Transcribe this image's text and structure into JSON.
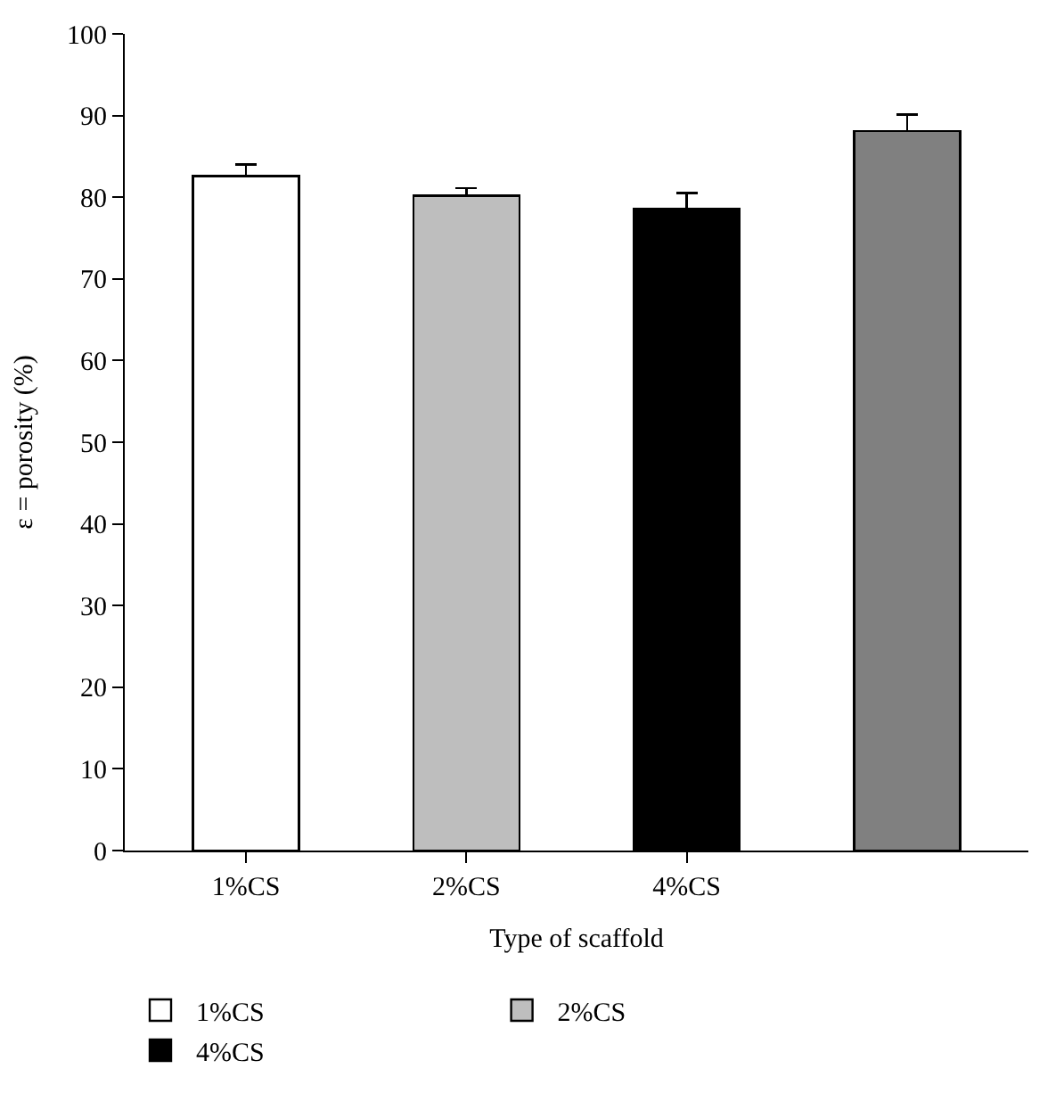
{
  "chart_data": {
    "type": "bar",
    "xlabel": "Type of scaffold",
    "ylabel": "ε = porosity (%)",
    "categories": [
      "1%CS",
      "2%CS",
      "4%CS",
      null
    ],
    "stacked": true,
    "series": [
      {
        "name": "1%CS",
        "color": "#ffffff",
        "values": [
          82.6,
          null,
          null,
          null
        ],
        "errors": [
          1.4,
          null,
          null,
          null
        ]
      },
      {
        "name": "2%CS",
        "color": "#bebebe",
        "values": [
          null,
          80.2,
          null,
          null
        ],
        "errors": [
          null,
          0.9,
          null,
          null
        ]
      },
      {
        "name": "4%CS",
        "color": "#000000",
        "values": [
          null,
          null,
          78.6,
          null
        ],
        "errors": [
          null,
          null,
          1.9,
          null
        ]
      },
      {
        "color": "#808080",
        "values": [
          null,
          null,
          null,
          88.1
        ],
        "errors": [
          null,
          null,
          null,
          2.0
        ]
      }
    ],
    "ylim": [
      0,
      100
    ],
    "yticks": [
      0,
      10,
      20,
      30,
      40,
      50,
      60,
      70,
      80,
      90,
      100
    ],
    "legend": "bottom"
  }
}
